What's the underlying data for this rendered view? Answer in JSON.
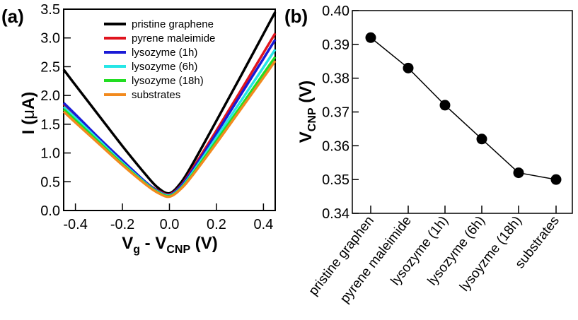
{
  "chart_data": [
    {
      "type": "line",
      "panel_label": "(a)",
      "xlabel": {
        "main": "V",
        "sub1": "g",
        "mid": " - V",
        "sub2": "CNP",
        "unit": " (V)"
      },
      "ylabel": {
        "main": "I (",
        "mu": "μ",
        "unit": "A)"
      },
      "xlim": [
        -0.45,
        0.45
      ],
      "ylim": [
        0,
        3.5
      ],
      "xticks": [
        "-0.4",
        "-0.2",
        "0.0",
        "0.2",
        "0.4"
      ],
      "xtick_values": [
        -0.4,
        -0.2,
        0,
        0.2,
        0.4
      ],
      "yticks": [
        "0.0",
        "0.5",
        "1.0",
        "1.5",
        "2.0",
        "2.5",
        "3.0",
        "3.5"
      ],
      "ytick_values": [
        0,
        0.5,
        1,
        1.5,
        2,
        2.5,
        3,
        3.5
      ],
      "legend_position": "top-center",
      "grid": false,
      "x": [
        -0.45,
        -0.4,
        -0.3,
        -0.2,
        -0.1,
        -0.05,
        0,
        0.05,
        0.1,
        0.2,
        0.3,
        0.4,
        0.45
      ],
      "series": [
        {
          "name": "pristine graphene",
          "color": "#000000",
          "values": [
            2.45,
            2.18,
            1.65,
            1.12,
            0.62,
            0.4,
            0.3,
            0.49,
            0.82,
            1.56,
            2.31,
            3.07,
            3.45
          ]
        },
        {
          "name": "pyrene maleimide",
          "color": "#e0141e",
          "values": [
            1.85,
            1.65,
            1.25,
            0.86,
            0.49,
            0.35,
            0.28,
            0.44,
            0.74,
            1.39,
            2.06,
            2.74,
            3.08
          ]
        },
        {
          "name": "lysozyme (1h)",
          "color": "#1a1ad6",
          "values": [
            1.87,
            1.67,
            1.26,
            0.87,
            0.49,
            0.34,
            0.27,
            0.43,
            0.71,
            1.34,
            1.99,
            2.64,
            2.97
          ]
        },
        {
          "name": "lysozyme (6h)",
          "color": "#26e6e6",
          "values": [
            1.8,
            1.61,
            1.22,
            0.83,
            0.47,
            0.33,
            0.26,
            0.4,
            0.67,
            1.27,
            1.88,
            2.49,
            2.8
          ]
        },
        {
          "name": "lysozyme (18h)",
          "color": "#22dd22",
          "values": [
            1.76,
            1.57,
            1.19,
            0.81,
            0.46,
            0.32,
            0.25,
            0.39,
            0.64,
            1.21,
            1.79,
            2.38,
            2.67
          ]
        },
        {
          "name": "substrates",
          "color": "#f28a1e",
          "values": [
            1.72,
            1.53,
            1.16,
            0.79,
            0.45,
            0.31,
            0.24,
            0.38,
            0.62,
            1.17,
            1.74,
            2.31,
            2.6
          ]
        }
      ]
    },
    {
      "type": "line",
      "panel_label": "(b)",
      "ylabel": {
        "main": "V",
        "sub": "CNP",
        "unit": " (V)"
      },
      "xlabel": "",
      "ylim": [
        0.34,
        0.4
      ],
      "yticks": [
        "0.34",
        "0.35",
        "0.36",
        "0.37",
        "0.38",
        "0.39",
        "0.40"
      ],
      "ytick_values": [
        0.34,
        0.35,
        0.36,
        0.37,
        0.38,
        0.39,
        0.4
      ],
      "categories": [
        "pristine graphen",
        "pyrene maleimide",
        "lysozyme (1h)",
        "lysozyme (6h)",
        "lysoyzme (18h)",
        "substrates"
      ],
      "values": [
        0.392,
        0.383,
        0.372,
        0.362,
        0.352,
        0.35
      ],
      "marker": "circle",
      "color": "#000000",
      "grid": false
    }
  ]
}
